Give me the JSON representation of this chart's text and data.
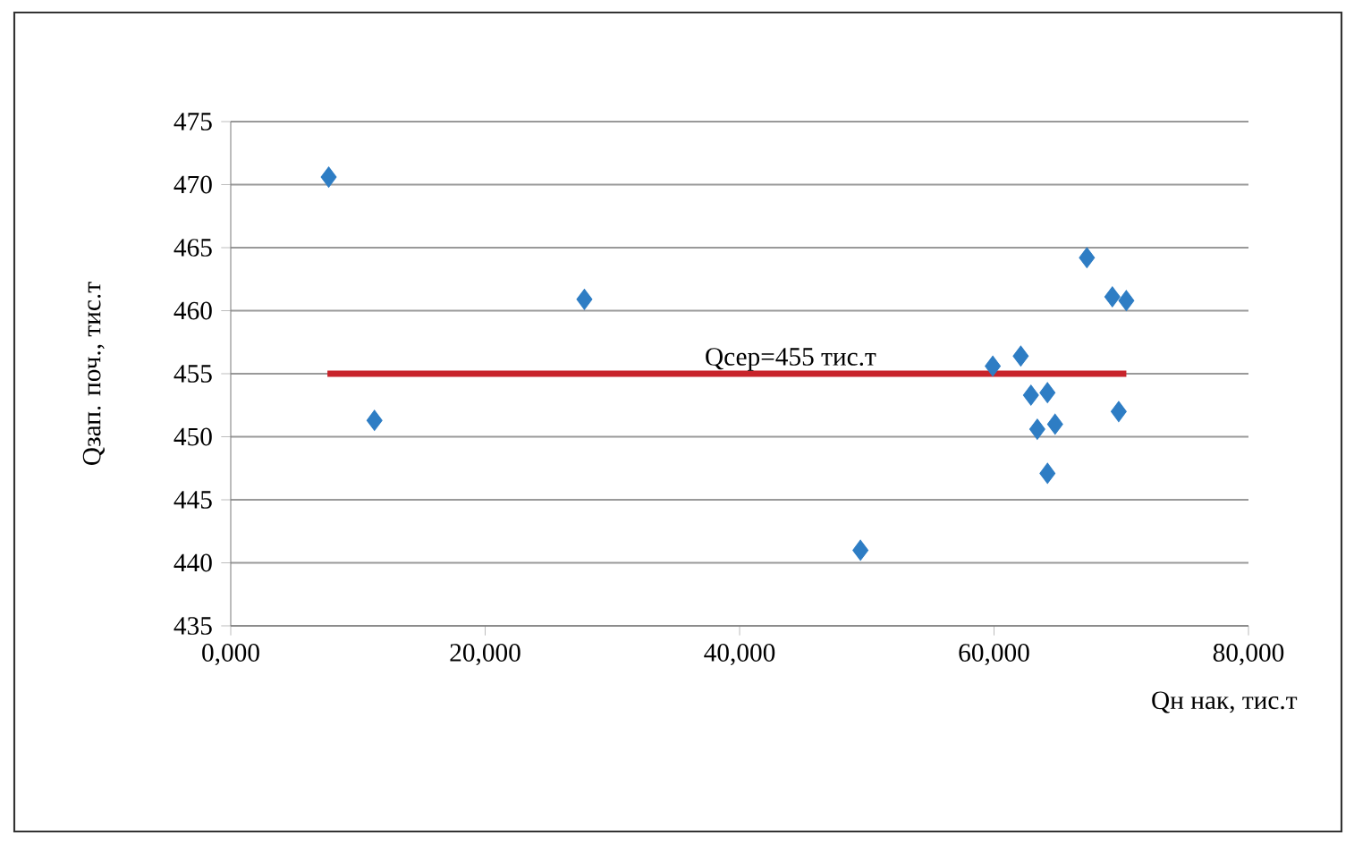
{
  "chart_data": {
    "type": "scatter",
    "xlabel": "Qн нак, тис.т",
    "ylabel": "Qзап. поч., тис.т",
    "series": [
      {
        "color": "#2e7dc4",
        "marker": "diamond",
        "x": [
          7700,
          11300,
          27800,
          49500,
          59900,
          62100,
          62900,
          63400,
          64200,
          64200,
          64800,
          67300,
          69300,
          69800,
          70400
        ],
        "values": [
          470.6,
          451.3,
          460.9,
          441.0,
          455.6,
          456.4,
          453.3,
          450.6,
          453.5,
          447.1,
          451.0,
          464.2,
          461.1,
          452.0,
          460.8
        ]
      },
      {
        "type": "line",
        "color": "#c8242b",
        "x": [
          7600,
          70400
        ],
        "values": [
          455,
          455
        ]
      }
    ],
    "annotations": [
      {
        "text": "Qсер=455 тис.т",
        "x": 44000,
        "y": 455
      }
    ],
    "xlim": [
      0,
      80000
    ],
    "ylim": [
      435,
      475
    ],
    "xticks": [
      {
        "value": 0,
        "label": "0,000"
      },
      {
        "value": 20000,
        "label": "20,000"
      },
      {
        "value": 40000,
        "label": "40,000"
      },
      {
        "value": 60000,
        "label": "60,000"
      },
      {
        "value": 80000,
        "label": "80,000"
      }
    ],
    "yticks": [
      435,
      440,
      445,
      450,
      455,
      460,
      465,
      470,
      475
    ],
    "grid": "y"
  }
}
